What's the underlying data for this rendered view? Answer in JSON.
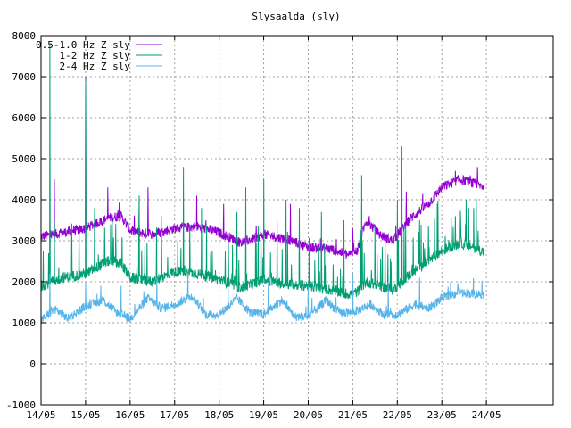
{
  "chart_data": {
    "type": "line",
    "title": "Slysaalda (sly)",
    "xlabel": "",
    "ylabel": "",
    "xlim": [
      0,
      11.5
    ],
    "ylim": [
      -1000,
      8000
    ],
    "x_tick_labels": [
      "14/05",
      "15/05",
      "16/05",
      "17/05",
      "18/05",
      "19/05",
      "20/05",
      "21/05",
      "22/05",
      "23/05",
      "24/05"
    ],
    "x_tick_values": [
      0,
      1,
      2,
      3,
      4,
      5,
      6,
      7,
      8,
      9,
      10
    ],
    "y_ticks": [
      -1000,
      0,
      1000,
      2000,
      3000,
      4000,
      5000,
      6000,
      7000,
      8000
    ],
    "grid": true,
    "legend_position": "top-left",
    "series": [
      {
        "name": "0.5-1.0 Hz Z sly",
        "color": "#9400d3",
        "x": [
          0,
          0.5,
          1,
          1.5,
          1.8,
          2,
          2.5,
          3,
          3.5,
          4,
          4.5,
          5,
          5.5,
          6,
          6.5,
          6.9,
          7.1,
          7.3,
          7.6,
          7.9,
          8.3,
          8.7,
          9,
          9.4,
          9.7,
          10
        ],
        "values": [
          3100,
          3200,
          3300,
          3550,
          3600,
          3250,
          3150,
          3300,
          3350,
          3200,
          2950,
          3150,
          3050,
          2850,
          2800,
          2650,
          2750,
          3500,
          3150,
          3000,
          3550,
          3900,
          4300,
          4500,
          4400,
          4300
        ],
        "noise": 120,
        "spikes": [
          [
            0.3,
            4500
          ],
          [
            1.0,
            7000
          ],
          [
            1.5,
            4300
          ],
          [
            2.4,
            4300
          ],
          [
            3.5,
            4100
          ],
          [
            4.1,
            3900
          ],
          [
            5.6,
            3900
          ],
          [
            7.0,
            3300
          ],
          [
            8.2,
            4200
          ],
          [
            9.3,
            4700
          ],
          [
            9.8,
            4800
          ]
        ]
      },
      {
        "name": "1-2 Hz Z sly",
        "color": "#009e73",
        "x": [
          0,
          0.5,
          1,
          1.5,
          1.8,
          2,
          2.5,
          3,
          3.5,
          4,
          4.5,
          5,
          5.5,
          6,
          6.5,
          6.9,
          7.1,
          7.3,
          7.6,
          7.9,
          8.3,
          8.7,
          9,
          9.4,
          9.7,
          10
        ],
        "values": [
          1900,
          2100,
          2200,
          2500,
          2450,
          2100,
          2000,
          2250,
          2200,
          2050,
          1850,
          2050,
          1950,
          1900,
          1800,
          1700,
          1750,
          2000,
          1900,
          1800,
          2200,
          2500,
          2750,
          2950,
          2850,
          2700
        ],
        "noise": 130,
        "spikes": [
          [
            0.2,
            7800
          ],
          [
            0.3,
            3500
          ],
          [
            1.0,
            6900
          ],
          [
            1.2,
            3800
          ],
          [
            1.6,
            3500
          ],
          [
            2.2,
            4100
          ],
          [
            2.7,
            3600
          ],
          [
            3.2,
            4800
          ],
          [
            3.6,
            3800
          ],
          [
            4.4,
            3700
          ],
          [
            4.6,
            4300
          ],
          [
            5.0,
            4500
          ],
          [
            5.3,
            3500
          ],
          [
            5.5,
            4000
          ],
          [
            5.8,
            3800
          ],
          [
            6.3,
            3700
          ],
          [
            6.8,
            3500
          ],
          [
            7.2,
            4600
          ],
          [
            7.5,
            3400
          ],
          [
            8.0,
            4000
          ],
          [
            8.1,
            5300
          ],
          [
            8.5,
            3500
          ],
          [
            8.9,
            3900
          ],
          [
            9.3,
            3600
          ],
          [
            9.6,
            3800
          ]
        ]
      },
      {
        "name": "2-4 Hz Z sly",
        "color": "#56b4e9",
        "x": [
          0,
          0.3,
          0.6,
          1,
          1.4,
          1.7,
          2,
          2.4,
          2.7,
          3,
          3.4,
          3.7,
          4,
          4.4,
          4.7,
          5,
          5.4,
          5.7,
          6,
          6.4,
          6.7,
          7,
          7.4,
          7.7,
          8,
          8.4,
          8.7,
          9,
          9.4,
          9.7,
          10
        ],
        "values": [
          1050,
          1350,
          1100,
          1400,
          1550,
          1250,
          1100,
          1600,
          1350,
          1450,
          1650,
          1200,
          1200,
          1600,
          1250,
          1200,
          1550,
          1150,
          1150,
          1550,
          1250,
          1250,
          1450,
          1200,
          1200,
          1450,
          1350,
          1600,
          1750,
          1700,
          1700
        ],
        "noise": 110,
        "spikes": [
          [
            0.2,
            2200
          ],
          [
            1.0,
            2000
          ],
          [
            1.8,
            1900
          ],
          [
            2.6,
            2100
          ],
          [
            3.3,
            2200
          ],
          [
            4.2,
            1900
          ],
          [
            5.1,
            2000
          ],
          [
            6.0,
            1900
          ],
          [
            7.0,
            2200
          ],
          [
            7.8,
            2000
          ],
          [
            8.5,
            2100
          ],
          [
            9.2,
            2000
          ]
        ]
      }
    ]
  }
}
